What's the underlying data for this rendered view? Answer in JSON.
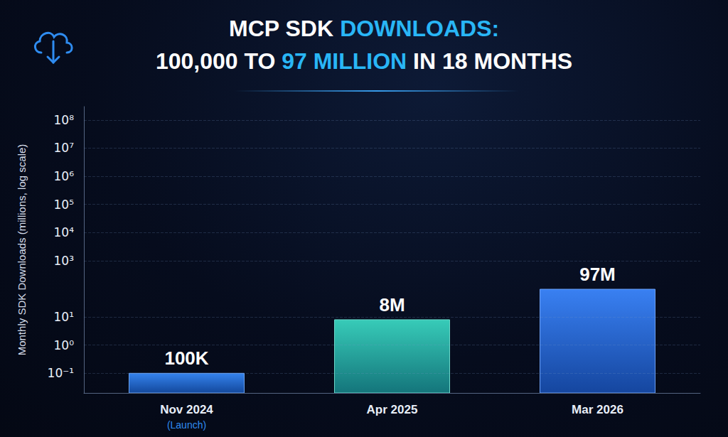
{
  "chart_data": {
    "type": "bar",
    "title": "MCP SDK DOWNLOADS:\n100,000 TO 97 MILLION IN 18 MONTHS",
    "title_highlights": [
      "DOWNLOADS:",
      "97 MILLION"
    ],
    "y_label": "Monthly SDK Downloads (millions, log scale)",
    "categories": [
      "Nov 2024",
      "Apr 2025",
      "Mar 2026"
    ],
    "annotations": [
      {
        "category": "Nov 2024",
        "text": "(Launch)"
      }
    ],
    "values": [
      0.1,
      8,
      97
    ],
    "value_labels": [
      "100K",
      "8M",
      "97M"
    ],
    "colors": [
      "#1a72ea",
      "#1cc4ae",
      "#1e6ff0"
    ],
    "log": "y",
    "ylim": [
      0.02,
      300000000
    ],
    "yticks": [
      {
        "value": 0.1,
        "label": "10⁻¹"
      },
      {
        "value": 1,
        "label": "10⁰"
      },
      {
        "value": 10,
        "label": "10¹"
      },
      {
        "value": 1000,
        "label": "10³"
      },
      {
        "value": 10000,
        "label": "10⁴"
      },
      {
        "value": 100000,
        "label": "10⁵"
      },
      {
        "value": 1000000,
        "label": "10⁶"
      },
      {
        "value": 10000000,
        "label": "10⁷"
      },
      {
        "value": 100000000,
        "label": "10⁸"
      }
    ],
    "grid": true,
    "data_labels": true
  }
}
